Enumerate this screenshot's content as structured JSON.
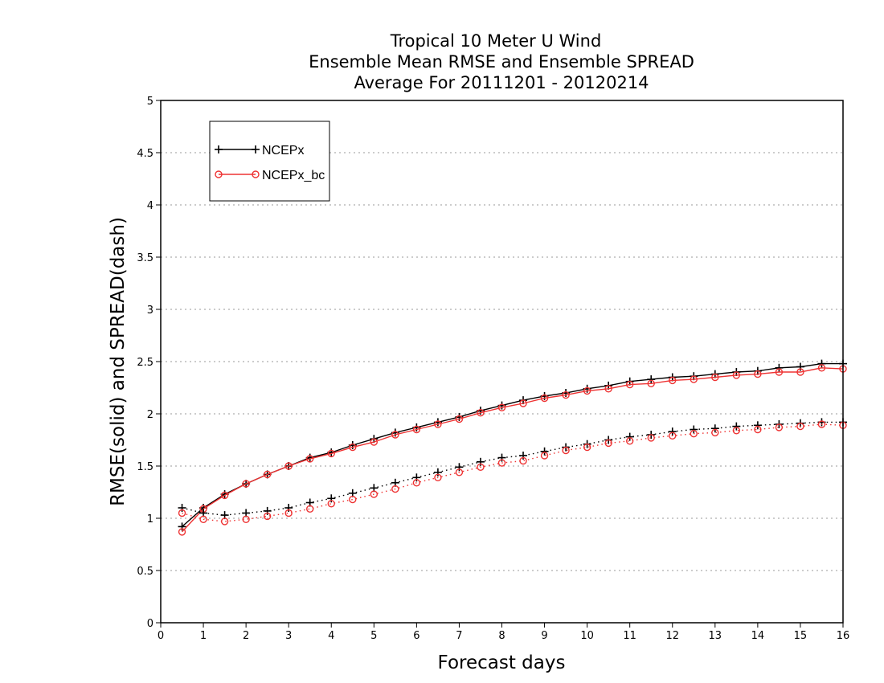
{
  "chart_data": {
    "type": "line",
    "title": [
      "Tropical 10 Meter U Wind",
      "Ensemble Mean RMSE and Ensemble SPREAD",
      "Average For 20111201 - 20120214"
    ],
    "xlabel": "Forecast days",
    "ylabel": "RMSE(solid) and SPREAD(dash)",
    "xlim": [
      0,
      16
    ],
    "ylim": [
      0,
      5
    ],
    "xticks": [
      "0",
      "1",
      "2",
      "3",
      "4",
      "5",
      "6",
      "7",
      "8",
      "9",
      "10",
      "11",
      "12",
      "13",
      "14",
      "15",
      "16"
    ],
    "yticks": [
      "0",
      "0.5",
      "1",
      "1.5",
      "2",
      "2.5",
      "3",
      "3.5",
      "4",
      "4.5",
      "5"
    ],
    "grid": "horizontal dotted",
    "legend_position": "top-left",
    "x": [
      0.5,
      1,
      1.5,
      2,
      2.5,
      3,
      3.5,
      4,
      4.5,
      5,
      5.5,
      6,
      6.5,
      7,
      7.5,
      8,
      8.5,
      9,
      9.5,
      10,
      10.5,
      11,
      11.5,
      12,
      12.5,
      13,
      13.5,
      14,
      14.5,
      15,
      15.5,
      16
    ],
    "series": [
      {
        "name": "NCEPx",
        "style": "solid",
        "color": "#000000",
        "marker": "plus",
        "values": [
          0.92,
          1.1,
          1.23,
          1.33,
          1.42,
          1.5,
          1.58,
          1.63,
          1.7,
          1.76,
          1.82,
          1.87,
          1.92,
          1.97,
          2.03,
          2.08,
          2.13,
          2.17,
          2.2,
          2.24,
          2.27,
          2.31,
          2.33,
          2.35,
          2.36,
          2.38,
          2.4,
          2.41,
          2.44,
          2.45,
          2.48,
          2.48
        ]
      },
      {
        "name": "NCEPx_bc",
        "style": "solid",
        "color": "#ee3333",
        "marker": "circle",
        "values": [
          0.87,
          1.09,
          1.22,
          1.33,
          1.42,
          1.5,
          1.57,
          1.62,
          1.68,
          1.73,
          1.8,
          1.85,
          1.9,
          1.95,
          2.01,
          2.06,
          2.1,
          2.15,
          2.18,
          2.22,
          2.24,
          2.28,
          2.29,
          2.32,
          2.33,
          2.35,
          2.37,
          2.38,
          2.4,
          2.4,
          2.44,
          2.43
        ]
      },
      {
        "name": "NCEPx",
        "style": "dotted",
        "color": "#000000",
        "marker": "plus",
        "values": [
          1.1,
          1.05,
          1.03,
          1.05,
          1.07,
          1.1,
          1.15,
          1.19,
          1.24,
          1.29,
          1.34,
          1.39,
          1.44,
          1.49,
          1.54,
          1.58,
          1.6,
          1.64,
          1.68,
          1.71,
          1.75,
          1.78,
          1.8,
          1.83,
          1.85,
          1.86,
          1.88,
          1.89,
          1.9,
          1.91,
          1.92,
          1.92
        ]
      },
      {
        "name": "NCEPx_bc",
        "style": "dotted",
        "color": "#ee3333",
        "marker": "circle",
        "values": [
          1.05,
          0.99,
          0.97,
          0.99,
          1.02,
          1.05,
          1.09,
          1.14,
          1.18,
          1.23,
          1.28,
          1.34,
          1.39,
          1.44,
          1.49,
          1.53,
          1.55,
          1.6,
          1.65,
          1.68,
          1.72,
          1.74,
          1.77,
          1.79,
          1.81,
          1.82,
          1.84,
          1.85,
          1.87,
          1.88,
          1.9,
          1.89
        ]
      }
    ],
    "legend": [
      {
        "label": "NCEPx",
        "color": "#000000",
        "marker": "plus"
      },
      {
        "label": "NCEPx_bc",
        "color": "#ee3333",
        "marker": "circle"
      }
    ]
  }
}
